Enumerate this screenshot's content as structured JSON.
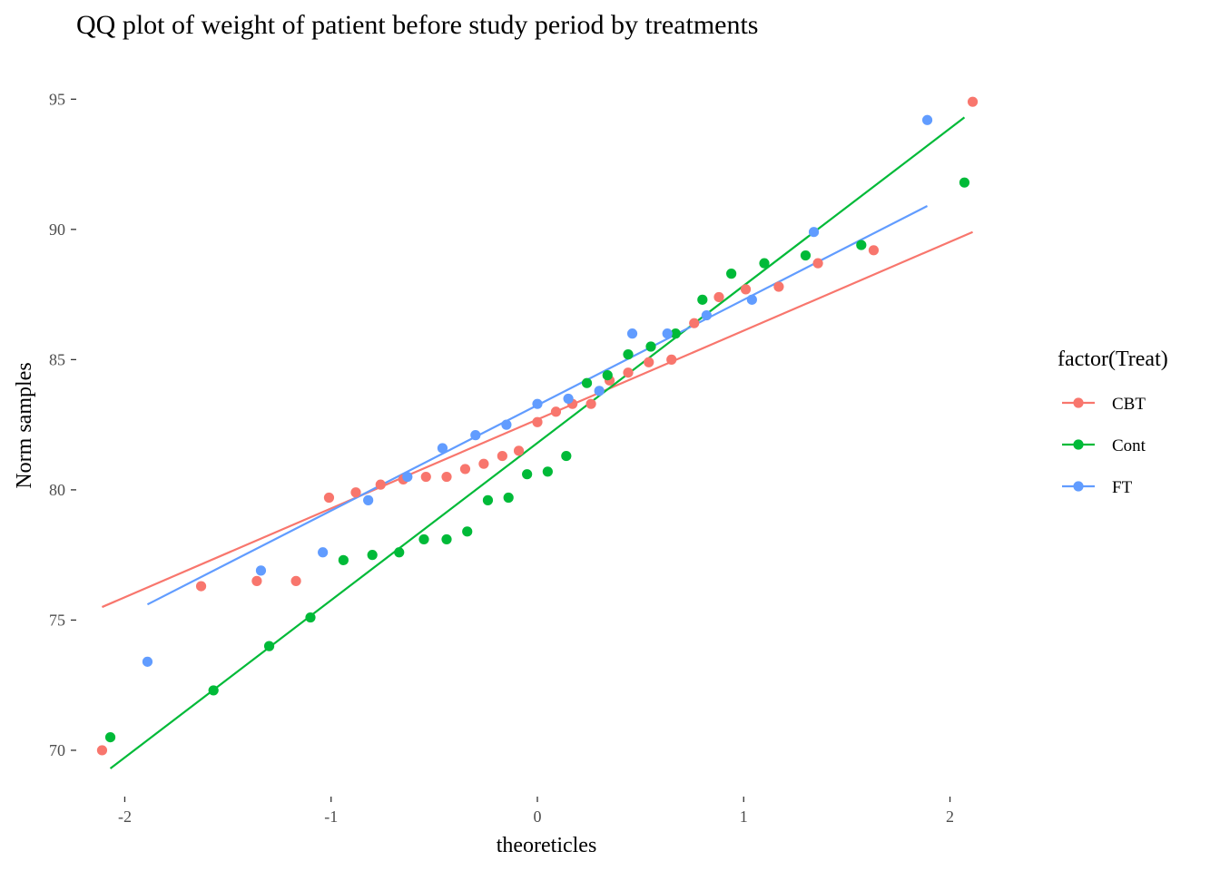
{
  "chart_data": {
    "type": "scatter",
    "title": "QQ plot of weight of patient before study period by treatments",
    "xlabel": "theoreticles",
    "ylabel": "Norm samples",
    "xlim": [
      -2.2,
      2.2
    ],
    "ylim": [
      68.5,
      96.3
    ],
    "xticks": [
      -2,
      -1,
      0,
      1,
      2
    ],
    "xtick_labels": [
      "-2",
      "-1",
      "0",
      "1",
      "2"
    ],
    "yticks": [
      70,
      75,
      80,
      85,
      90,
      95
    ],
    "ytick_labels": [
      "70",
      "75",
      "80",
      "85",
      "90",
      "95"
    ],
    "grid": false,
    "legend": {
      "title": "factor(Treat)",
      "position": "right",
      "entries": [
        "CBT",
        "Cont",
        "FT"
      ]
    },
    "series": [
      {
        "name": "CBT",
        "color": "#F8766D",
        "points": [
          [
            -2.11,
            70.0
          ],
          [
            -1.63,
            76.3
          ],
          [
            -1.36,
            76.5
          ],
          [
            -1.17,
            76.5
          ],
          [
            -1.01,
            79.7
          ],
          [
            -0.88,
            79.9
          ],
          [
            -0.76,
            80.2
          ],
          [
            -0.65,
            80.4
          ],
          [
            -0.54,
            80.5
          ],
          [
            -0.44,
            80.5
          ],
          [
            -0.35,
            80.8
          ],
          [
            -0.26,
            81.0
          ],
          [
            -0.17,
            81.3
          ],
          [
            -0.09,
            81.5
          ],
          [
            0.0,
            82.6
          ],
          [
            0.09,
            83.0
          ],
          [
            0.17,
            83.3
          ],
          [
            0.26,
            83.3
          ],
          [
            0.35,
            84.2
          ],
          [
            0.44,
            84.5
          ],
          [
            0.54,
            84.9
          ],
          [
            0.65,
            85.0
          ],
          [
            0.76,
            86.4
          ],
          [
            0.88,
            87.4
          ],
          [
            1.01,
            87.7
          ],
          [
            1.17,
            87.8
          ],
          [
            1.36,
            88.7
          ],
          [
            1.63,
            89.2
          ],
          [
            2.11,
            94.9
          ]
        ],
        "qq_line": [
          [
            -2.11,
            75.5
          ],
          [
            2.11,
            89.9
          ]
        ]
      },
      {
        "name": "Cont",
        "color": "#00BA38",
        "points": [
          [
            -2.07,
            70.5
          ],
          [
            -1.57,
            72.3
          ],
          [
            -1.3,
            74.0
          ],
          [
            -1.1,
            75.1
          ],
          [
            -0.94,
            77.3
          ],
          [
            -0.8,
            77.5
          ],
          [
            -0.67,
            77.6
          ],
          [
            -0.55,
            78.1
          ],
          [
            -0.44,
            78.1
          ],
          [
            -0.34,
            78.4
          ],
          [
            -0.24,
            79.6
          ],
          [
            -0.14,
            79.7
          ],
          [
            -0.05,
            80.6
          ],
          [
            0.05,
            80.7
          ],
          [
            0.14,
            81.3
          ],
          [
            0.24,
            84.1
          ],
          [
            0.34,
            84.4
          ],
          [
            0.44,
            85.2
          ],
          [
            0.55,
            85.5
          ],
          [
            0.67,
            86.0
          ],
          [
            0.8,
            87.3
          ],
          [
            0.94,
            88.3
          ],
          [
            1.1,
            88.7
          ],
          [
            1.3,
            89.0
          ],
          [
            1.57,
            89.4
          ],
          [
            2.07,
            91.8
          ]
        ],
        "qq_line": [
          [
            -2.07,
            69.3
          ],
          [
            2.07,
            94.3
          ]
        ]
      },
      {
        "name": "FT",
        "color": "#619CFF",
        "points": [
          [
            -1.89,
            73.4
          ],
          [
            -1.34,
            76.9
          ],
          [
            -1.04,
            77.6
          ],
          [
            -0.82,
            79.6
          ],
          [
            -0.63,
            80.5
          ],
          [
            -0.46,
            81.6
          ],
          [
            -0.3,
            82.1
          ],
          [
            -0.15,
            82.5
          ],
          [
            0.0,
            83.3
          ],
          [
            0.15,
            83.5
          ],
          [
            0.3,
            83.8
          ],
          [
            0.46,
            86.0
          ],
          [
            0.63,
            86.0
          ],
          [
            0.82,
            86.7
          ],
          [
            1.04,
            87.3
          ],
          [
            1.34,
            89.9
          ],
          [
            1.89,
            94.2
          ]
        ],
        "qq_line": [
          [
            -1.89,
            75.6
          ],
          [
            1.89,
            90.9
          ]
        ]
      }
    ]
  }
}
